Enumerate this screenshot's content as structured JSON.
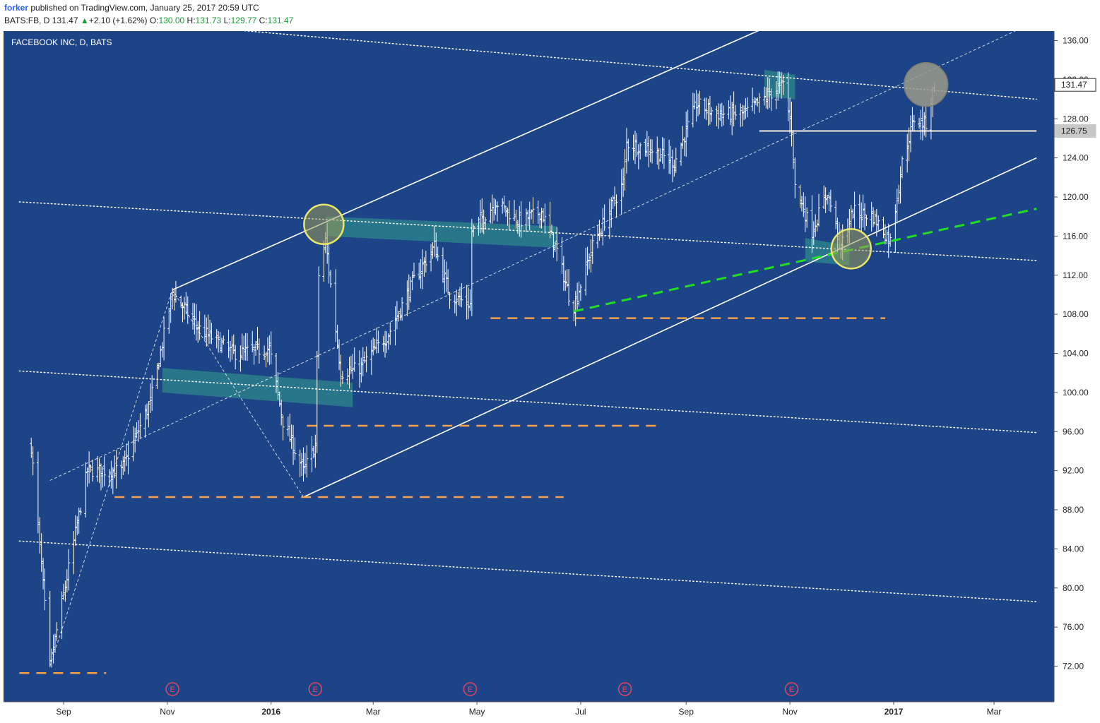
{
  "header": {
    "author": "forker",
    "published": "published on TradingView.com, January 25, 2017 20:59 UTC",
    "symbol": "BATS:FB, D",
    "last": "131.47",
    "change": "+2.10 (+1.62%)",
    "open_label": "O:",
    "open": "130.00",
    "high_label": "H:",
    "high": "131.73",
    "low_label": "L:",
    "low": "129.77",
    "close_label": "C:",
    "close": "131.47"
  },
  "colors": {
    "background": "#1e4488",
    "bars": "#ffffff",
    "support_dash": "#f5a04a",
    "trend_green": "#22dd22",
    "zone": "#2e8b8b",
    "circle_yellow": "#e6e66a",
    "circle_gray": "#9a9a8a"
  },
  "chart_data": {
    "type": "ohlc",
    "title": "FACEBOOK INC, D, BATS",
    "y_axis": {
      "ticks": [
        "136.00",
        "132.00",
        "128.00",
        "124.00",
        "120.00",
        "116.00",
        "112.00",
        "108.00",
        "104.00",
        "100.00",
        "96.00",
        "92.00",
        "88.00",
        "84.00",
        "80.00",
        "76.00",
        "72.00"
      ],
      "tick_values": [
        136,
        132,
        128,
        124,
        120,
        116,
        112,
        108,
        104,
        100,
        96,
        92,
        88,
        84,
        80,
        76,
        72
      ],
      "range": [
        69.8,
        138.0
      ]
    },
    "x_axis": {
      "labels": [
        "Sep",
        "Nov",
        "2016",
        "Mar",
        "May",
        "Jul",
        "Sep",
        "Nov",
        "2017",
        "Mar"
      ],
      "bold": [
        false,
        false,
        true,
        false,
        false,
        false,
        false,
        false,
        true,
        false
      ],
      "dates": [
        "2015-09-01",
        "2015-11-01",
        "2016-01-01",
        "2016-03-01",
        "2016-05-01",
        "2016-07-01",
        "2016-09-01",
        "2016-11-01",
        "2017-01-01",
        "2017-03-01"
      ]
    },
    "price_labels": [
      {
        "text": "131.47",
        "value": 131.47
      },
      {
        "text": "126.75",
        "value": 126.75
      }
    ],
    "earnings": [
      {
        "label": "E",
        "date": "2015-11-04"
      },
      {
        "label": "E",
        "date": "2016-01-27"
      },
      {
        "label": "E",
        "date": "2016-04-27"
      },
      {
        "label": "E",
        "date": "2016-07-27"
      },
      {
        "label": "E",
        "date": "2016-11-02"
      }
    ],
    "anchors": [
      {
        "date": "2015-08-13",
        "value": 94.5
      },
      {
        "date": "2015-08-24",
        "value": 72.0
      },
      {
        "date": "2015-09-15",
        "value": 92.0
      },
      {
        "date": "2015-10-05",
        "value": 92.0
      },
      {
        "date": "2015-10-22",
        "value": 99.0
      },
      {
        "date": "2015-11-04",
        "value": 110.2
      },
      {
        "date": "2015-11-20",
        "value": 106.5
      },
      {
        "date": "2015-12-10",
        "value": 104.0
      },
      {
        "date": "2015-12-31",
        "value": 104.5
      },
      {
        "date": "2016-01-08",
        "value": 97.0
      },
      {
        "date": "2016-01-20",
        "value": 92.0
      },
      {
        "date": "2016-01-27",
        "value": 94.5
      },
      {
        "date": "2016-01-29",
        "value": 112.0
      },
      {
        "date": "2016-02-02",
        "value": 115.5
      },
      {
        "date": "2016-02-11",
        "value": 102.0
      },
      {
        "date": "2016-02-22",
        "value": 102.5
      },
      {
        "date": "2016-03-10",
        "value": 106.0
      },
      {
        "date": "2016-03-25",
        "value": 111.5
      },
      {
        "date": "2016-04-06",
        "value": 115.0
      },
      {
        "date": "2016-04-15",
        "value": 110.0
      },
      {
        "date": "2016-04-27",
        "value": 109.0
      },
      {
        "date": "2016-04-28",
        "value": 116.5
      },
      {
        "date": "2016-05-12",
        "value": 119.5
      },
      {
        "date": "2016-05-26",
        "value": 117.5
      },
      {
        "date": "2016-06-08",
        "value": 118.5
      },
      {
        "date": "2016-06-17",
        "value": 114.5
      },
      {
        "date": "2016-06-24",
        "value": 110.0
      },
      {
        "date": "2016-06-27",
        "value": 108.8
      },
      {
        "date": "2016-07-08",
        "value": 115.0
      },
      {
        "date": "2016-07-26",
        "value": 121.5
      },
      {
        "date": "2016-07-28",
        "value": 125.5
      },
      {
        "date": "2016-08-10",
        "value": 125.0
      },
      {
        "date": "2016-08-25",
        "value": 123.5
      },
      {
        "date": "2016-09-07",
        "value": 129.5
      },
      {
        "date": "2016-09-20",
        "value": 128.5
      },
      {
        "date": "2016-10-05",
        "value": 128.5
      },
      {
        "date": "2016-10-20",
        "value": 130.5
      },
      {
        "date": "2016-10-28",
        "value": 131.5
      },
      {
        "date": "2016-11-02",
        "value": 127.0
      },
      {
        "date": "2016-11-04",
        "value": 121.0
      },
      {
        "date": "2016-11-14",
        "value": 116.5
      },
      {
        "date": "2016-11-23",
        "value": 120.5
      },
      {
        "date": "2016-12-01",
        "value": 115.0
      },
      {
        "date": "2016-12-08",
        "value": 118.5
      },
      {
        "date": "2016-12-20",
        "value": 118.0
      },
      {
        "date": "2016-12-30",
        "value": 115.5
      },
      {
        "date": "2017-01-06",
        "value": 123.5
      },
      {
        "date": "2017-01-13",
        "value": 128.0
      },
      {
        "date": "2017-01-20",
        "value": 127.5
      },
      {
        "date": "2017-01-25",
        "value": 131.47
      }
    ],
    "channel_lines": [
      {
        "d1": "2015-11-04",
        "v1": 110.5,
        "d2": "2016-10-25",
        "v2": 137.9,
        "style": "solid"
      },
      {
        "d1": "2016-01-20",
        "v1": 89.3,
        "d2": "2017-03-26",
        "v2": 124.0,
        "style": "solid"
      },
      {
        "d1": "2015-08-24",
        "v1": 91.0,
        "d2": "2017-03-26",
        "v2": 138.0,
        "style": "thin-dash"
      },
      {
        "d1": "2015-08-24",
        "v1": 72.0,
        "d2": "2015-11-04",
        "v2": 110.5,
        "style": "thin-dash"
      },
      {
        "d1": "2015-11-04",
        "v1": 110.5,
        "d2": "2016-01-20",
        "v2": 89.3,
        "style": "thin-dash"
      }
    ],
    "fan_lines": [
      {
        "d1": "2015-08-06",
        "v1": 139.0,
        "d2": "2017-03-26",
        "v2": 130.0
      },
      {
        "d1": "2015-08-06",
        "v1": 119.5,
        "d2": "2017-03-26",
        "v2": 113.5
      },
      {
        "d1": "2015-08-06",
        "v1": 102.2,
        "d2": "2017-03-26",
        "v2": 95.9
      },
      {
        "d1": "2015-08-06",
        "v1": 84.8,
        "d2": "2017-03-26",
        "v2": 78.6
      }
    ],
    "supports": [
      {
        "value": 71.3,
        "d1": "2015-08-06",
        "d2": "2015-09-26"
      },
      {
        "value": 89.3,
        "d1": "2015-10-01",
        "d2": "2016-06-21"
      },
      {
        "value": 96.6,
        "d1": "2016-01-22",
        "d2": "2016-08-16"
      },
      {
        "value": 107.6,
        "d1": "2016-05-09",
        "d2": "2016-12-27"
      }
    ],
    "green_trend": {
      "d1": "2016-06-27",
      "v1": 108.3,
      "d2": "2017-03-26",
      "v2": 118.8
    },
    "resistance_line": {
      "value": 126.75,
      "d1": "2016-10-14",
      "d2": "2017-03-26"
    },
    "zones": [
      {
        "d1": "2015-10-29",
        "d2": "2016-02-18",
        "top1": 102.5,
        "bot1": 100.0,
        "top2": 101.0,
        "bot2": 98.5
      },
      {
        "d1": "2016-02-02",
        "d2": "2016-06-17",
        "top1": 118.0,
        "bot1": 116.0,
        "top2": 117.0,
        "bot2": 114.8
      },
      {
        "d1": "2016-10-17",
        "d2": "2016-11-04",
        "top1": 133.0,
        "bot1": 130.3,
        "top2": 132.5,
        "bot2": 130.0
      },
      {
        "d1": "2016-11-10",
        "d2": "2016-12-06",
        "top1": 115.8,
        "bot1": 113.4,
        "top2": 115.0,
        "bot2": 113.0
      }
    ],
    "circles": [
      {
        "date": "2016-02-01",
        "value": 117.2,
        "color": "yellow"
      },
      {
        "date": "2016-12-07",
        "value": 114.7,
        "color": "yellow"
      },
      {
        "date": "2017-01-20",
        "value": 131.5,
        "color": "gray"
      }
    ]
  }
}
